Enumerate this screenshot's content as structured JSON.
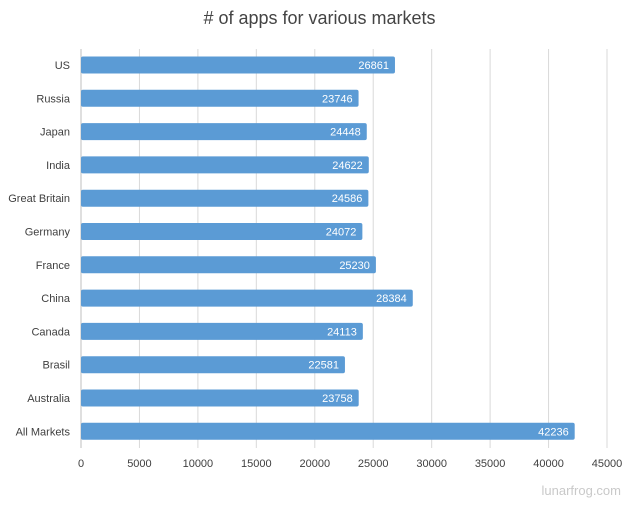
{
  "chart_data": {
    "type": "bar",
    "orientation": "horizontal",
    "title": "# of apps for various markets",
    "categories": [
      "US",
      "Russia",
      "Japan",
      "India",
      "Great Britain",
      "Germany",
      "France",
      "China",
      "Canada",
      "Brasil",
      "Australia",
      "All Markets"
    ],
    "values": [
      26861,
      23746,
      24448,
      24622,
      24586,
      24072,
      25230,
      28384,
      24113,
      22581,
      23758,
      42236
    ],
    "xlim": [
      0,
      45000
    ],
    "xticks": [
      0,
      5000,
      10000,
      15000,
      20000,
      25000,
      30000,
      35000,
      40000,
      45000
    ],
    "grid": "vertical",
    "data_labels": true,
    "bar_color": "#5B9BD5"
  },
  "watermark": "lunarfrog.com"
}
